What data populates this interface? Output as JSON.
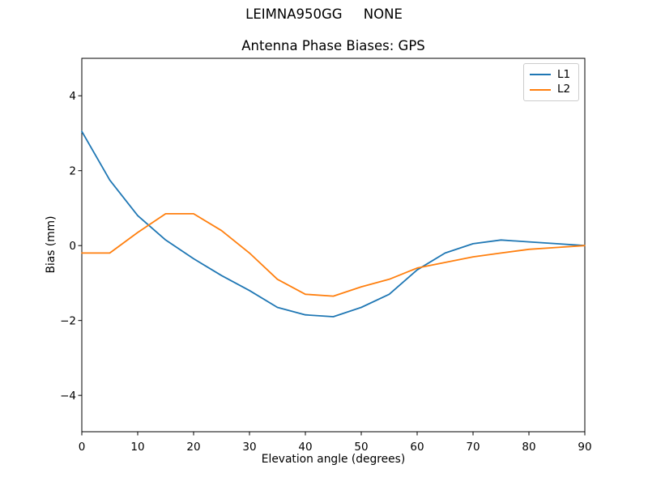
{
  "figure": {
    "suptitle": "LEIMNA950GG     NONE",
    "title": "Antenna Phase Biases: GPS",
    "xlabel": "Elevation angle (degrees)",
    "ylabel": "Bias (mm)"
  },
  "chart_data": {
    "type": "line",
    "suptitle": "LEIMNA950GG     NONE",
    "title": "Antenna Phase Biases: GPS",
    "xlabel": "Elevation angle (degrees)",
    "ylabel": "Bias (mm)",
    "xlim": [
      0,
      90
    ],
    "ylim": [
      -4.97,
      5.0
    ],
    "grid": false,
    "legend_position": "upper right",
    "x_ticks": [
      {
        "v": 0,
        "label": "0"
      },
      {
        "v": 10,
        "label": "10"
      },
      {
        "v": 20,
        "label": "20"
      },
      {
        "v": 30,
        "label": "30"
      },
      {
        "v": 40,
        "label": "40"
      },
      {
        "v": 50,
        "label": "50"
      },
      {
        "v": 60,
        "label": "60"
      },
      {
        "v": 70,
        "label": "70"
      },
      {
        "v": 80,
        "label": "80"
      },
      {
        "v": 90,
        "label": "90"
      }
    ],
    "y_ticks": [
      {
        "v": 4,
        "label": "4"
      },
      {
        "v": 2,
        "label": "2"
      },
      {
        "v": 0,
        "label": "0"
      },
      {
        "v": -2,
        "label": "−2"
      },
      {
        "v": -4,
        "label": "−4"
      }
    ],
    "x": [
      0,
      5,
      10,
      15,
      20,
      25,
      30,
      35,
      40,
      45,
      50,
      55,
      60,
      65,
      70,
      75,
      80,
      85,
      90
    ],
    "series": [
      {
        "name": "L1",
        "color": "#1f77b4",
        "values": [
          3.05,
          1.75,
          0.8,
          0.15,
          -0.35,
          -0.8,
          -1.2,
          -1.65,
          -1.85,
          -1.9,
          -1.65,
          -1.3,
          -0.65,
          -0.2,
          0.05,
          0.15,
          0.1,
          0.05,
          0.0
        ]
      },
      {
        "name": "L2",
        "color": "#ff7f0e",
        "values": [
          -0.2,
          -0.2,
          0.35,
          0.85,
          0.85,
          0.4,
          -0.2,
          -0.9,
          -1.3,
          -1.35,
          -1.1,
          -0.9,
          -0.6,
          -0.45,
          -0.3,
          -0.2,
          -0.1,
          -0.05,
          0.0
        ]
      }
    ]
  }
}
